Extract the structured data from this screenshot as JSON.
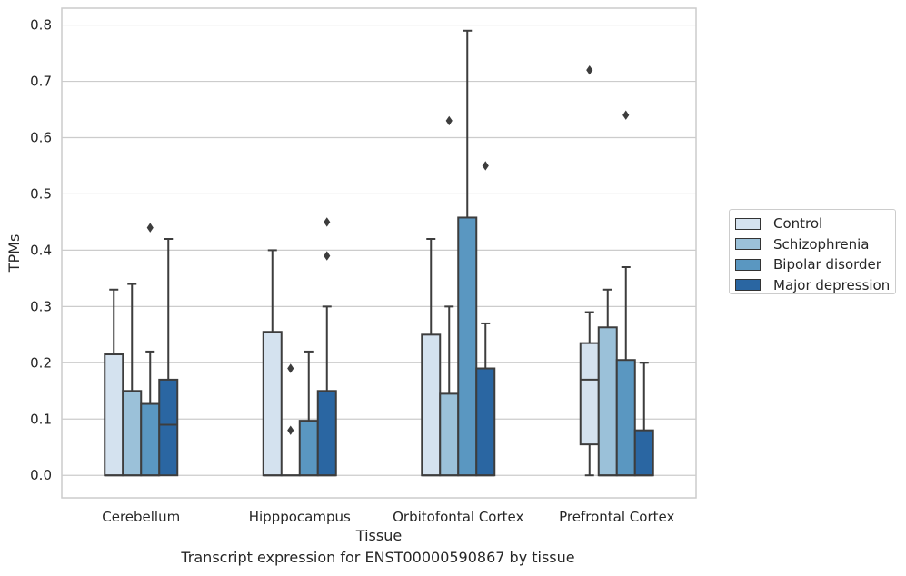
{
  "chart_data": {
    "type": "box",
    "title": "",
    "caption": "Transcript expression for ENST00000590867 by tissue",
    "xlabel": "Tissue",
    "ylabel": "TPMs",
    "ylim": [
      -0.04,
      0.83
    ],
    "yticks": [
      "0.0",
      "0.1",
      "0.2",
      "0.3",
      "0.4",
      "0.5",
      "0.6",
      "0.7",
      "0.8"
    ],
    "ytick_values": [
      0,
      0.1,
      0.2,
      0.3,
      0.4,
      0.5,
      0.6,
      0.7,
      0.8
    ],
    "grid": true,
    "legend_position": "right",
    "categories": [
      "Cerebellum",
      "Hipppocampus",
      "Orbitofontal Cortex",
      "Prefrontal Cortex"
    ],
    "series": [
      {
        "name": "Control",
        "color": "#d4e2ef",
        "boxes": [
          {
            "whislo": 0,
            "q1": 0,
            "med": 0,
            "q3": 0.215,
            "whishi": 0.33,
            "fliers": []
          },
          {
            "whislo": 0,
            "q1": 0,
            "med": 0,
            "q3": 0.255,
            "whishi": 0.4,
            "fliers": []
          },
          {
            "whislo": 0,
            "q1": 0,
            "med": 0,
            "q3": 0.25,
            "whishi": 0.42,
            "fliers": []
          },
          {
            "whislo": 0,
            "q1": 0.055,
            "med": 0.17,
            "q3": 0.235,
            "whishi": 0.29,
            "fliers": [
              0.72
            ]
          }
        ]
      },
      {
        "name": "Schizophrenia",
        "color": "#9bc1d9",
        "boxes": [
          {
            "whislo": 0,
            "q1": 0,
            "med": 0,
            "q3": 0.15,
            "whishi": 0.34,
            "fliers": []
          },
          {
            "whislo": 0,
            "q1": 0,
            "med": 0,
            "q3": 0,
            "whishi": 0,
            "fliers": [
              0.08,
              0.19
            ]
          },
          {
            "whislo": 0,
            "q1": 0,
            "med": 0,
            "q3": 0.145,
            "whishi": 0.3,
            "fliers": [
              0.63
            ]
          },
          {
            "whislo": 0,
            "q1": 0,
            "med": 0,
            "q3": 0.263,
            "whishi": 0.33,
            "fliers": []
          }
        ]
      },
      {
        "name": "Bipolar disorder",
        "color": "#5a97c1",
        "boxes": [
          {
            "whislo": 0,
            "q1": 0,
            "med": 0,
            "q3": 0.127,
            "whishi": 0.22,
            "fliers": [
              0.44
            ]
          },
          {
            "whislo": 0,
            "q1": 0,
            "med": 0,
            "q3": 0.097,
            "whishi": 0.22,
            "fliers": []
          },
          {
            "whislo": 0,
            "q1": 0,
            "med": 0,
            "q3": 0.458,
            "whishi": 0.79,
            "fliers": []
          },
          {
            "whislo": 0,
            "q1": 0,
            "med": 0,
            "q3": 0.205,
            "whishi": 0.37,
            "fliers": [
              0.64
            ]
          }
        ]
      },
      {
        "name": "Major depression",
        "color": "#2a66a2",
        "boxes": [
          {
            "whislo": 0,
            "q1": 0,
            "med": 0.09,
            "q3": 0.17,
            "whishi": 0.42,
            "fliers": []
          },
          {
            "whislo": 0,
            "q1": 0,
            "med": 0,
            "q3": 0.15,
            "whishi": 0.3,
            "fliers": [
              0.39,
              0.45
            ]
          },
          {
            "whislo": 0,
            "q1": 0,
            "med": 0,
            "q3": 0.19,
            "whishi": 0.27,
            "fliers": [
              0.55
            ]
          },
          {
            "whislo": 0,
            "q1": 0,
            "med": 0,
            "q3": 0.08,
            "whishi": 0.2,
            "fliers": []
          }
        ]
      }
    ]
  }
}
